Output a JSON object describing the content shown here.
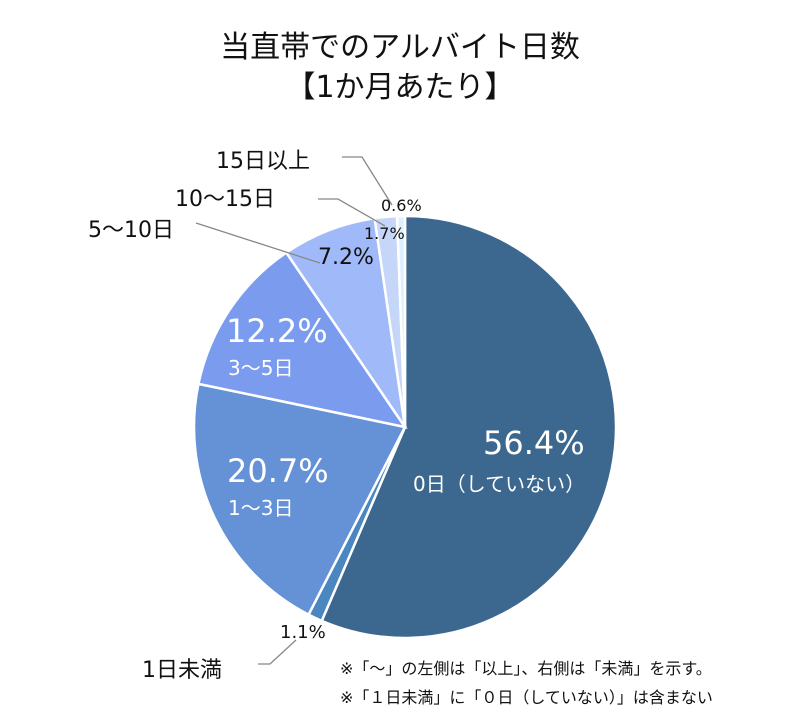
{
  "chart_data": {
    "type": "pie",
    "title": "当直帯でのアルバイト日数",
    "subtitle": "【1か月あたり】",
    "start": "top",
    "direction": "clockwise",
    "slices": [
      {
        "label": "0日（していない）",
        "value": 56.4,
        "value_label": "56.4%",
        "color": "#3C6890"
      },
      {
        "label": "1日未満",
        "value": 1.1,
        "value_label": "1.1%",
        "color": "#4A86C0"
      },
      {
        "label": "1～3日",
        "value": 20.7,
        "value_label": "20.7%",
        "color": "#6591D6"
      },
      {
        "label": "3～5日",
        "value": 12.2,
        "value_label": "12.2%",
        "color": "#7B9BEE"
      },
      {
        "label": "5～10日",
        "value": 7.2,
        "value_label": "7.2%",
        "color": "#A0B9F8"
      },
      {
        "label": "10～15日",
        "value": 1.7,
        "value_label": "1.7%",
        "color": "#C6D6F8"
      },
      {
        "label": "15日以上",
        "value": 0.6,
        "value_label": "0.6%",
        "color": "#DDF0FF"
      }
    ],
    "notes": [
      "※「～」の左側は「以上」、右側は「未満」を示す。",
      "※「１日未満」に「０日（していない）」は含まない"
    ]
  }
}
